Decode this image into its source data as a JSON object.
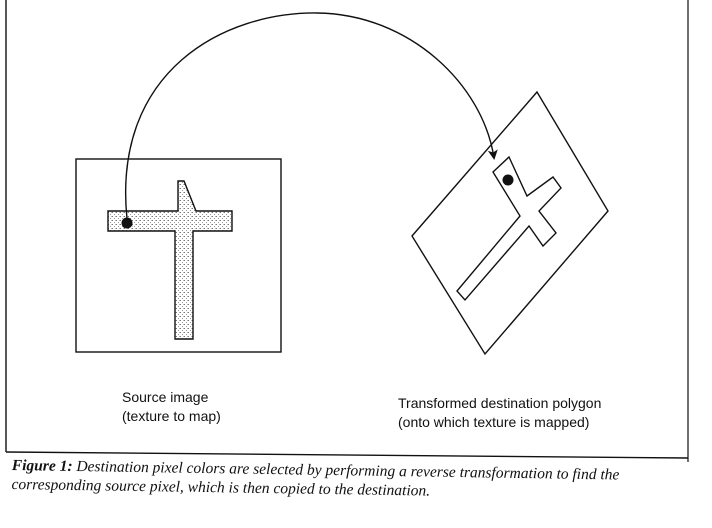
{
  "source": {
    "label_line1": "Source image",
    "label_line2": "(texture to map)"
  },
  "destination": {
    "label_line1": "Transformed destination polygon",
    "label_line2": "(onto which texture is mapped)"
  },
  "caption": {
    "lead": "Figure 1:",
    "text": "Destination pixel colors are selected by performing a reverse transformation to find the corresponding source pixel, which is then copied to the destination."
  },
  "colors": {
    "ink": "#111111",
    "stipple": "#b0b0b0",
    "paper": "#ffffff"
  },
  "icons": {
    "mapping_arrow": "curved-double-arrow-icon"
  }
}
